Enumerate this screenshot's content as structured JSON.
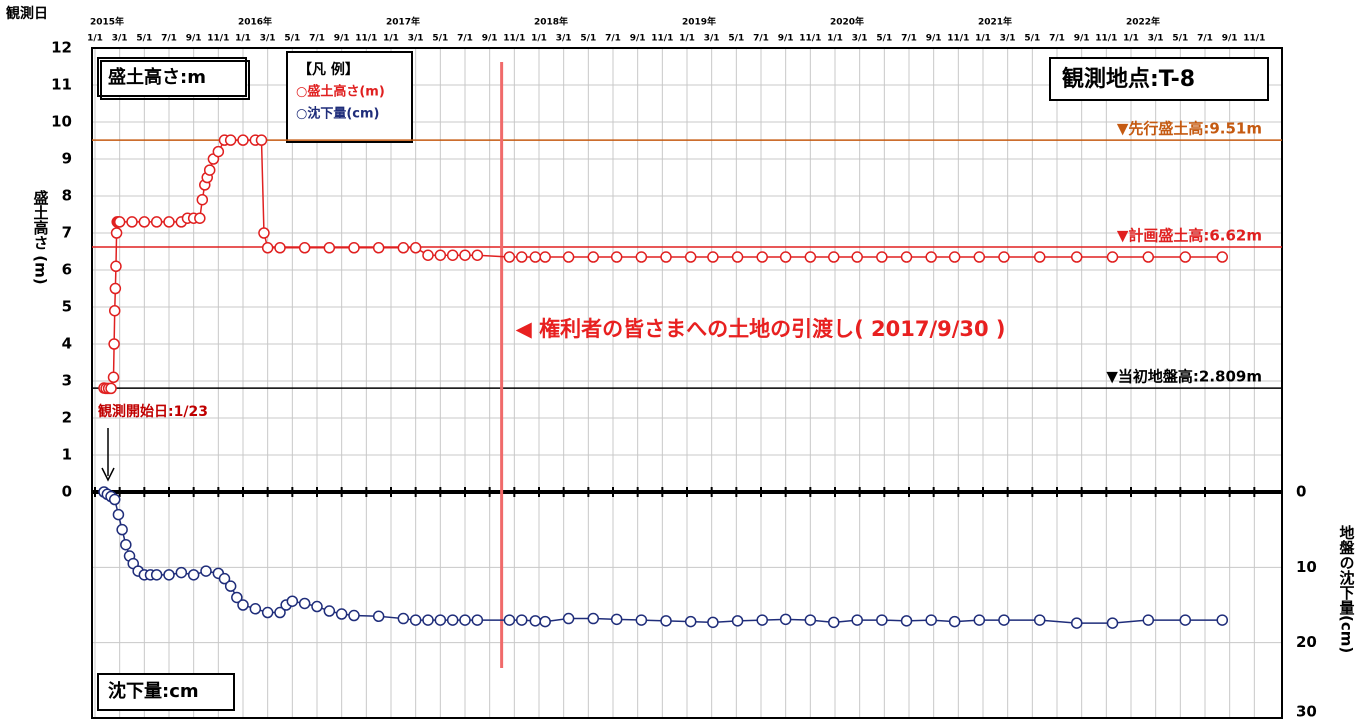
{
  "chart_data": {
    "type": "line",
    "x_title": "観測日",
    "y_label": "盛土高さ (m)",
    "y2_label": "地盤の沈下量(cm)",
    "xlim": [
      0,
      96
    ],
    "xticks": [
      {
        "value": 0,
        "label": "1/1"
      },
      {
        "value": 2,
        "label": "3/1"
      },
      {
        "value": 4,
        "label": "5/1"
      },
      {
        "value": 6,
        "label": "7/1"
      },
      {
        "value": 8,
        "label": "9/1"
      },
      {
        "value": 10,
        "label": "11/1"
      },
      {
        "value": 12,
        "label": "1/1"
      },
      {
        "value": 14,
        "label": "3/1"
      },
      {
        "value": 16,
        "label": "5/1"
      },
      {
        "value": 18,
        "label": "7/1"
      },
      {
        "value": 20,
        "label": "9/1"
      },
      {
        "value": 22,
        "label": "11/1"
      },
      {
        "value": 24,
        "label": "1/1"
      },
      {
        "value": 26,
        "label": "3/1"
      },
      {
        "value": 28,
        "label": "5/1"
      },
      {
        "value": 30,
        "label": "7/1"
      },
      {
        "value": 32,
        "label": "9/1"
      },
      {
        "value": 34,
        "label": "11/1"
      },
      {
        "value": 36,
        "label": "1/1"
      },
      {
        "value": 38,
        "label": "3/1"
      },
      {
        "value": 40,
        "label": "5/1"
      },
      {
        "value": 42,
        "label": "7/1"
      },
      {
        "value": 44,
        "label": "9/1"
      },
      {
        "value": 46,
        "label": "11/1"
      },
      {
        "value": 48,
        "label": "1/1"
      },
      {
        "value": 50,
        "label": "3/1"
      },
      {
        "value": 52,
        "label": "5/1"
      },
      {
        "value": 54,
        "label": "7/1"
      },
      {
        "value": 56,
        "label": "9/1"
      },
      {
        "value": 58,
        "label": "11/1"
      },
      {
        "value": 60,
        "label": "1/1"
      },
      {
        "value": 62,
        "label": "3/1"
      },
      {
        "value": 64,
        "label": "5/1"
      },
      {
        "value": 66,
        "label": "7/1"
      },
      {
        "value": 68,
        "label": "9/1"
      },
      {
        "value": 70,
        "label": "11/1"
      },
      {
        "value": 72,
        "label": "1/1"
      },
      {
        "value": 74,
        "label": "3/1"
      },
      {
        "value": 76,
        "label": "5/1"
      },
      {
        "value": 78,
        "label": "7/1"
      },
      {
        "value": 80,
        "label": "9/1"
      },
      {
        "value": 82,
        "label": "11/1"
      },
      {
        "value": 84,
        "label": "1/1"
      },
      {
        "value": 86,
        "label": "3/1"
      },
      {
        "value": 88,
        "label": "5/1"
      },
      {
        "value": 90,
        "label": "7/1"
      },
      {
        "value": 92,
        "label": "9/1"
      },
      {
        "value": 94,
        "label": "11/1"
      }
    ],
    "year_labels": [
      {
        "value": 0,
        "label": "2015年"
      },
      {
        "value": 12,
        "label": "2016年"
      },
      {
        "value": 24,
        "label": "2017年"
      },
      {
        "value": 36,
        "label": "2018年"
      },
      {
        "value": 48,
        "label": "2019年"
      },
      {
        "value": 60,
        "label": "2020年"
      },
      {
        "value": 72,
        "label": "2021年"
      },
      {
        "value": 84,
        "label": "2022年"
      }
    ],
    "ylim": [
      0,
      12
    ],
    "yticks": [
      0,
      1,
      2,
      3,
      4,
      5,
      6,
      7,
      8,
      9,
      10,
      11,
      12
    ],
    "y2lim": [
      0,
      30
    ],
    "y2ticks": [
      0,
      10,
      20,
      30
    ],
    "y2_inverted": true,
    "grid": true,
    "series": [
      {
        "name": "○盛土高さ(m)",
        "color": "#e02020",
        "x": [
          0.73,
          0.9,
          1.1,
          1.3,
          1.5,
          1.55,
          1.6,
          1.65,
          1.7,
          1.75,
          1.8,
          1.9,
          2.0,
          3,
          4,
          5,
          6,
          7,
          7.5,
          8,
          8.5,
          8.7,
          8.9,
          9.1,
          9.3,
          9.6,
          10,
          10.5,
          11,
          12,
          13,
          13.5,
          13.7,
          14,
          15,
          17,
          19,
          21,
          23,
          25,
          26,
          27,
          28,
          29,
          30,
          31,
          33.6,
          34.6,
          35.7,
          36.5,
          38.4,
          40.4,
          42.3,
          44.3,
          46.3,
          48.3,
          50.1,
          52.1,
          54.1,
          56,
          58,
          59.9,
          61.8,
          63.8,
          65.8,
          67.8,
          69.7,
          71.7,
          73.7,
          76.6,
          79.6,
          82.5,
          85.4,
          88.4,
          91.4
        ],
        "values": [
          2.81,
          2.8,
          2.8,
          2.8,
          3.1,
          4.0,
          4.9,
          5.5,
          6.1,
          7.0,
          7.3,
          7.3,
          7.3,
          7.3,
          7.3,
          7.3,
          7.3,
          7.3,
          7.4,
          7.4,
          7.4,
          7.9,
          8.3,
          8.5,
          8.7,
          9.0,
          9.2,
          9.51,
          9.51,
          9.51,
          9.51,
          9.51,
          7.0,
          6.6,
          6.6,
          6.6,
          6.6,
          6.6,
          6.6,
          6.6,
          6.6,
          6.4,
          6.4,
          6.4,
          6.4,
          6.4,
          6.35,
          6.35,
          6.35,
          6.35,
          6.35,
          6.35,
          6.35,
          6.35,
          6.35,
          6.35,
          6.35,
          6.35,
          6.35,
          6.35,
          6.35,
          6.35,
          6.35,
          6.35,
          6.35,
          6.35,
          6.35,
          6.35,
          6.35,
          6.35,
          6.35,
          6.35,
          6.35,
          6.35,
          6.35
        ]
      },
      {
        "name": "○沈下量(cm)",
        "color": "#1f2d7a",
        "axis": "y2",
        "x": [
          0.73,
          1,
          1.3,
          1.6,
          1.9,
          2.2,
          2.5,
          2.8,
          3.1,
          3.5,
          4,
          4.5,
          5,
          6,
          7,
          8,
          9,
          10,
          10.5,
          11,
          11.5,
          12,
          13,
          14,
          15,
          15.5,
          16,
          17,
          18,
          19,
          20,
          21,
          23,
          25,
          26,
          27,
          28,
          29,
          30,
          31,
          33.6,
          34.6,
          35.7,
          36.5,
          38.4,
          40.4,
          42.3,
          44.3,
          46.3,
          48.3,
          50.1,
          52.1,
          54.1,
          56,
          58,
          59.9,
          61.8,
          63.8,
          65.8,
          67.8,
          69.7,
          71.7,
          73.7,
          76.6,
          79.6,
          82.5,
          85.4,
          88.4,
          91.4
        ],
        "values": [
          0,
          0.3,
          0.6,
          1,
          3,
          5,
          7,
          8.5,
          9.5,
          10.5,
          11,
          11,
          11,
          11,
          10.7,
          11,
          10.5,
          10.8,
          11.5,
          12.5,
          14,
          15,
          15.5,
          16,
          16,
          15,
          14.5,
          14.8,
          15.2,
          15.8,
          16.2,
          16.4,
          16.5,
          16.8,
          17,
          17,
          17,
          17,
          17,
          17,
          17,
          17,
          17.1,
          17.2,
          16.8,
          16.8,
          16.9,
          17,
          17.1,
          17.2,
          17.3,
          17.1,
          17,
          16.9,
          17,
          17.3,
          17,
          17,
          17.1,
          17,
          17.2,
          17,
          17,
          17,
          17.4,
          17.4,
          17,
          17,
          17
        ]
      }
    ],
    "reference_lines": [
      {
        "value": 9.51,
        "label": "▼先行盛土高:9.51m",
        "color": "#c55a11"
      },
      {
        "value": 6.62,
        "label": "▼計画盛土高:6.62m",
        "color": "#e02020"
      },
      {
        "value": 2.809,
        "label": "▼当初地盤高:2.809m",
        "color": "#000000"
      }
    ],
    "handover": {
      "x": 32.97,
      "label": "◀ 権利者の皆さまへの土地の引渡し( 2017/9/30 )"
    },
    "start": {
      "x": 0.73,
      "label": "観測開始日:1/23"
    },
    "legend_title": "【凡 例】",
    "station": "観測地点:T-8",
    "upper_box": "盛土高さ:m",
    "lower_box": "沈下量:cm"
  }
}
